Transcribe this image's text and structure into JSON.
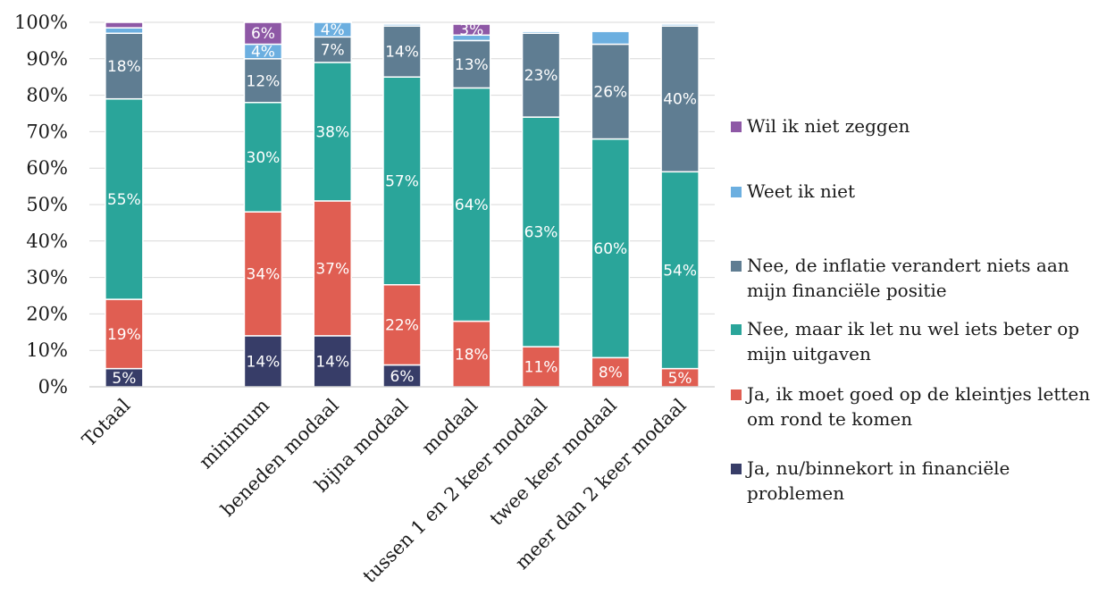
{
  "chart_data": {
    "type": "bar",
    "stacked": true,
    "categories": [
      "Totaal",
      "minimum",
      "beneden modaal",
      "bijna modaal",
      "modaal",
      "tussen 1 en 2 keer modaal",
      "twee keer modaal",
      "meer dan 2 keer modaal"
    ],
    "ylim": [
      0,
      100
    ],
    "yticks": [
      "0%",
      "10%",
      "20%",
      "30%",
      "40%",
      "50%",
      "60%",
      "70%",
      "80%",
      "90%",
      "100%"
    ],
    "grid": true,
    "legend_position": "right",
    "series": [
      {
        "name": "Ja, nu/binnekort in financiële problemen",
        "color": "#373D68",
        "values": [
          5,
          14,
          14,
          6,
          0,
          0,
          0,
          0
        ],
        "labels": [
          "5%",
          "14%",
          "14%",
          "6%",
          "",
          "",
          "",
          ""
        ]
      },
      {
        "name": "Ja, ik moet goed op de kleintjes letten om rond te komen",
        "color": "#E05E52",
        "values": [
          19,
          34,
          37,
          22,
          18,
          11,
          8,
          5
        ],
        "labels": [
          "19%",
          "34%",
          "37%",
          "22%",
          "18%",
          "11%",
          "8%",
          "5%"
        ]
      },
      {
        "name": "Nee, maar ik let nu wel iets beter op mijn uitgaven",
        "color": "#2AA59A",
        "values": [
          55,
          30,
          38,
          57,
          64,
          63,
          60,
          54
        ],
        "labels": [
          "55%",
          "30%",
          "38%",
          "57%",
          "64%",
          "63%",
          "60%",
          "54%"
        ]
      },
      {
        "name": "Nee, de inflatie verandert niets aan mijn financiële positie",
        "color": "#5F7D92",
        "values": [
          18,
          12,
          7,
          14,
          13,
          23,
          26,
          40
        ],
        "labels": [
          "18%",
          "12%",
          "7%",
          "14%",
          "13%",
          "23%",
          "26%",
          "40%"
        ]
      },
      {
        "name": "Weet ik niet",
        "color": "#6CAFE0",
        "values": [
          1.5,
          4,
          4,
          0.5,
          1.5,
          0.5,
          3.5,
          0.5
        ],
        "labels": [
          "",
          "4%",
          "4%",
          "",
          "",
          "",
          "",
          ""
        ]
      },
      {
        "name": "Wil ik niet zeggen",
        "color": "#8E58A6",
        "values": [
          1.5,
          6,
          0,
          0,
          3,
          0,
          0,
          0
        ],
        "labels": [
          "",
          "6%",
          "",
          "",
          "3%",
          "",
          "",
          ""
        ]
      }
    ]
  }
}
